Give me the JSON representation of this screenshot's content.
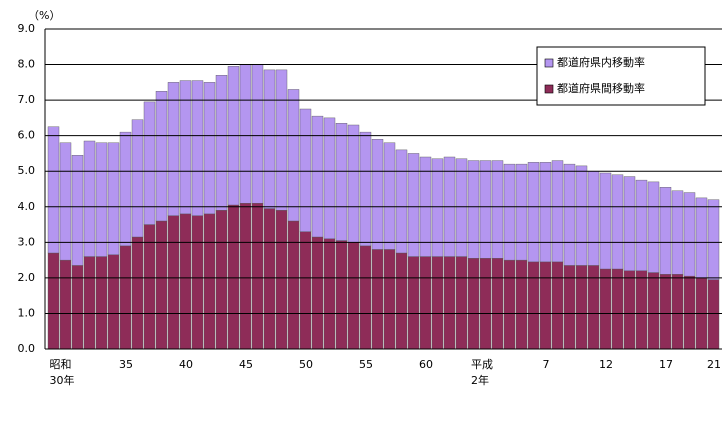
{
  "chart_data": {
    "type": "stacked-bar",
    "y_label": "（%）",
    "categories": [
      null,
      "昭和\n30年",
      null,
      null,
      null,
      null,
      "35",
      null,
      null,
      null,
      null,
      "40",
      null,
      null,
      null,
      null,
      "45",
      null,
      null,
      null,
      null,
      "50",
      null,
      null,
      null,
      null,
      "55",
      null,
      null,
      null,
      null,
      "60",
      null,
      null,
      null,
      null,
      "平成\n2年",
      null,
      null,
      null,
      null,
      "7",
      null,
      null,
      null,
      null,
      "12",
      null,
      null,
      null,
      null,
      "17",
      null,
      null,
      null,
      "21"
    ],
    "series": [
      {
        "name": "都道府県内移動率",
        "color": "#b496f0",
        "values": [
          3.55,
          3.3,
          3.1,
          3.25,
          3.2,
          3.15,
          3.2,
          3.3,
          3.45,
          3.65,
          3.75,
          3.75,
          3.8,
          3.7,
          3.8,
          3.9,
          3.9,
          3.9,
          3.9,
          3.95,
          3.7,
          3.45,
          3.4,
          3.4,
          3.3,
          3.3,
          3.2,
          3.1,
          3.0,
          2.9,
          2.9,
          2.8,
          2.75,
          2.8,
          2.75,
          2.75,
          2.75,
          2.75,
          2.7,
          2.7,
          2.8,
          2.8,
          2.85,
          2.85,
          2.8,
          2.65,
          2.7,
          2.65,
          2.65,
          2.55,
          2.55,
          2.45,
          2.35,
          2.35,
          2.25,
          2.25
        ]
      },
      {
        "name": "都道府県間移動率",
        "color": "#8e2c58",
        "values": [
          2.7,
          2.5,
          2.35,
          2.6,
          2.6,
          2.65,
          2.9,
          3.15,
          3.5,
          3.6,
          3.75,
          3.8,
          3.75,
          3.8,
          3.9,
          4.05,
          4.1,
          4.1,
          3.95,
          3.9,
          3.6,
          3.3,
          3.15,
          3.1,
          3.05,
          3.0,
          2.9,
          2.8,
          2.8,
          2.7,
          2.6,
          2.6,
          2.6,
          2.6,
          2.6,
          2.55,
          2.55,
          2.55,
          2.5,
          2.5,
          2.45,
          2.45,
          2.45,
          2.35,
          2.35,
          2.35,
          2.25,
          2.25,
          2.2,
          2.2,
          2.15,
          2.1,
          2.1,
          2.05,
          2.0,
          1.95
        ]
      }
    ],
    "ylim": [
      0,
      9
    ],
    "yticks": [
      {
        "value": 0,
        "label": "0.0"
      },
      {
        "value": 1,
        "label": "1.0"
      },
      {
        "value": 2,
        "label": "2.0"
      },
      {
        "value": 3,
        "label": "3.0"
      },
      {
        "value": 4,
        "label": "4.0"
      },
      {
        "value": 5,
        "label": "5.0"
      },
      {
        "value": 6,
        "label": "6.0"
      },
      {
        "value": 7,
        "label": "7.0"
      },
      {
        "value": 8,
        "label": "8.0"
      },
      {
        "value": 9,
        "label": "9.0"
      }
    ],
    "grid": true,
    "legend": "upper right"
  }
}
